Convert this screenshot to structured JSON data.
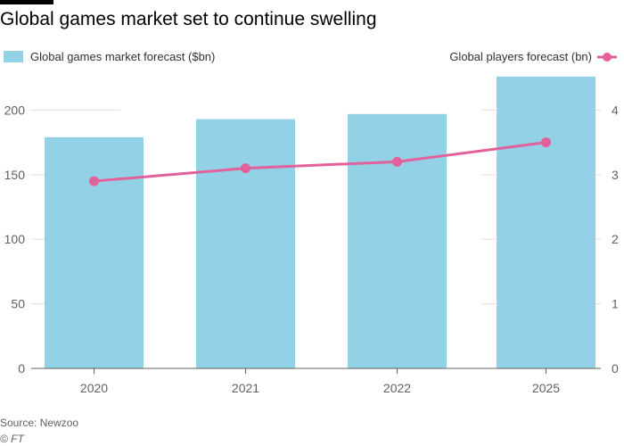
{
  "title": "Global games market set to continue swelling",
  "legend": {
    "bars_label": "Global games market forecast ($bn)",
    "line_label": "Global players forecast (bn)"
  },
  "colors": {
    "bar": "#93d1e6",
    "line": "#e3619a",
    "grid": "#e6dfd9",
    "axis": "#66605c"
  },
  "chart_data": {
    "type": "bar",
    "categories": [
      "2020",
      "2021",
      "2022",
      "2025"
    ],
    "series": [
      {
        "name": "Global games market forecast ($bn)",
        "type": "bar",
        "axis": "left",
        "values": [
          179,
          193,
          197,
          226
        ]
      },
      {
        "name": "Global players forecast (bn)",
        "type": "line",
        "axis": "right",
        "values": [
          2.9,
          3.1,
          3.2,
          3.5
        ]
      }
    ],
    "y_left": {
      "ticks": [
        0,
        50,
        100,
        150,
        200
      ],
      "ylim": [
        0,
        230
      ]
    },
    "y_right": {
      "ticks": [
        0,
        1,
        2,
        3,
        4
      ],
      "ylim": [
        0,
        4.6
      ]
    },
    "grid": true,
    "legend_position": "top"
  },
  "footer": {
    "source": "Source: Newzoo",
    "credit": "© FT"
  }
}
